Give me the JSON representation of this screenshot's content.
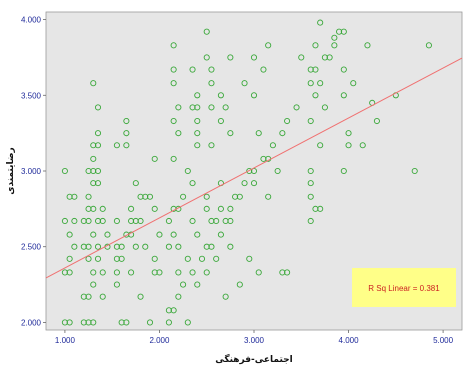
{
  "chart_data": {
    "type": "scatter",
    "xlabel": "اجتماعی-فرهنگی",
    "ylabel": "رضایتمندی",
    "xlim": [
      0.8,
      5.2
    ],
    "ylim": [
      1.95,
      4.05
    ],
    "x_ticks": [
      "1.000",
      "2.000",
      "3.000",
      "4.000",
      "5.000"
    ],
    "y_ticks": [
      "2.000",
      "2.500",
      "3.000",
      "3.500",
      "4.000"
    ],
    "grid": false,
    "plot_background": "#e6e6e6",
    "point_color": "#3aa83a",
    "fit_line_color": "#f07070",
    "fit_line": {
      "intercept": 2.03,
      "slope": 0.33,
      "x_range": [
        0.8,
        5.2
      ]
    },
    "r_squared_label": "R Sq Linear = 0.381",
    "r_squared_box_color": "#ffff88",
    "points": [
      [
        1.0,
        2.0
      ],
      [
        1.05,
        2.0
      ],
      [
        1.2,
        2.0
      ],
      [
        1.25,
        2.0
      ],
      [
        1.3,
        2.0
      ],
      [
        1.6,
        2.0
      ],
      [
        1.65,
        2.0
      ],
      [
        1.9,
        2.0
      ],
      [
        2.1,
        2.0
      ],
      [
        2.3,
        2.0
      ],
      [
        1.2,
        2.17
      ],
      [
        1.25,
        2.17
      ],
      [
        1.4,
        2.17
      ],
      [
        1.8,
        2.17
      ],
      [
        2.15,
        2.08
      ],
      [
        2.1,
        2.08
      ],
      [
        2.2,
        2.17
      ],
      [
        2.7,
        2.17
      ],
      [
        1.3,
        2.25
      ],
      [
        1.55,
        2.25
      ],
      [
        2.25,
        2.25
      ],
      [
        2.4,
        2.25
      ],
      [
        2.85,
        2.25
      ],
      [
        1.0,
        2.33
      ],
      [
        1.05,
        2.33
      ],
      [
        1.3,
        2.33
      ],
      [
        1.4,
        2.33
      ],
      [
        1.55,
        2.33
      ],
      [
        1.7,
        2.33
      ],
      [
        1.95,
        2.33
      ],
      [
        2.0,
        2.33
      ],
      [
        2.2,
        2.33
      ],
      [
        2.35,
        2.33
      ],
      [
        2.5,
        2.33
      ],
      [
        3.05,
        2.33
      ],
      [
        3.3,
        2.33
      ],
      [
        3.35,
        2.33
      ],
      [
        1.05,
        2.42
      ],
      [
        1.25,
        2.42
      ],
      [
        1.35,
        2.42
      ],
      [
        1.55,
        2.42
      ],
      [
        1.6,
        2.42
      ],
      [
        1.95,
        2.42
      ],
      [
        2.3,
        2.42
      ],
      [
        2.45,
        2.42
      ],
      [
        2.6,
        2.42
      ],
      [
        2.95,
        2.42
      ],
      [
        1.1,
        2.5
      ],
      [
        1.2,
        2.5
      ],
      [
        1.25,
        2.5
      ],
      [
        1.35,
        2.5
      ],
      [
        1.45,
        2.5
      ],
      [
        1.55,
        2.5
      ],
      [
        1.6,
        2.5
      ],
      [
        1.75,
        2.5
      ],
      [
        1.85,
        2.5
      ],
      [
        2.1,
        2.5
      ],
      [
        2.2,
        2.5
      ],
      [
        2.5,
        2.5
      ],
      [
        2.55,
        2.5
      ],
      [
        2.75,
        2.5
      ],
      [
        1.05,
        2.58
      ],
      [
        1.3,
        2.58
      ],
      [
        1.45,
        2.58
      ],
      [
        1.65,
        2.58
      ],
      [
        1.7,
        2.58
      ],
      [
        2.0,
        2.58
      ],
      [
        2.15,
        2.58
      ],
      [
        2.4,
        2.58
      ],
      [
        2.65,
        2.58
      ],
      [
        1.0,
        2.67
      ],
      [
        1.1,
        2.67
      ],
      [
        1.2,
        2.67
      ],
      [
        1.25,
        2.67
      ],
      [
        1.35,
        2.67
      ],
      [
        1.4,
        2.67
      ],
      [
        1.55,
        2.67
      ],
      [
        1.7,
        2.67
      ],
      [
        1.75,
        2.67
      ],
      [
        1.8,
        2.67
      ],
      [
        2.1,
        2.67
      ],
      [
        2.35,
        2.67
      ],
      [
        2.55,
        2.67
      ],
      [
        2.6,
        2.67
      ],
      [
        2.7,
        2.67
      ],
      [
        2.75,
        2.67
      ],
      [
        3.6,
        2.67
      ],
      [
        1.25,
        2.75
      ],
      [
        1.3,
        2.75
      ],
      [
        1.4,
        2.75
      ],
      [
        1.7,
        2.75
      ],
      [
        1.95,
        2.75
      ],
      [
        2.15,
        2.75
      ],
      [
        2.2,
        2.75
      ],
      [
        2.5,
        2.75
      ],
      [
        2.65,
        2.75
      ],
      [
        2.75,
        2.75
      ],
      [
        3.65,
        2.75
      ],
      [
        3.7,
        2.75
      ],
      [
        1.05,
        2.83
      ],
      [
        1.1,
        2.83
      ],
      [
        1.25,
        2.83
      ],
      [
        1.8,
        2.83
      ],
      [
        1.85,
        2.83
      ],
      [
        1.9,
        2.83
      ],
      [
        2.25,
        2.83
      ],
      [
        2.5,
        2.83
      ],
      [
        2.8,
        2.83
      ],
      [
        2.85,
        2.83
      ],
      [
        3.15,
        2.83
      ],
      [
        3.6,
        2.83
      ],
      [
        1.3,
        2.92
      ],
      [
        1.35,
        2.92
      ],
      [
        1.75,
        2.92
      ],
      [
        2.35,
        2.92
      ],
      [
        2.65,
        2.92
      ],
      [
        2.9,
        2.92
      ],
      [
        3.0,
        2.92
      ],
      [
        3.6,
        2.92
      ],
      [
        1.0,
        3.0
      ],
      [
        1.25,
        3.0
      ],
      [
        1.3,
        3.0
      ],
      [
        1.35,
        3.0
      ],
      [
        2.3,
        3.0
      ],
      [
        2.95,
        3.0
      ],
      [
        3.0,
        3.0
      ],
      [
        3.25,
        3.0
      ],
      [
        3.6,
        3.0
      ],
      [
        3.95,
        3.0
      ],
      [
        4.7,
        3.0
      ],
      [
        1.3,
        3.08
      ],
      [
        1.95,
        3.08
      ],
      [
        2.15,
        3.08
      ],
      [
        3.1,
        3.08
      ],
      [
        3.15,
        3.08
      ],
      [
        1.3,
        3.17
      ],
      [
        1.35,
        3.17
      ],
      [
        1.55,
        3.17
      ],
      [
        1.65,
        3.17
      ],
      [
        2.4,
        3.17
      ],
      [
        2.55,
        3.17
      ],
      [
        3.2,
        3.17
      ],
      [
        3.7,
        3.17
      ],
      [
        4.0,
        3.17
      ],
      [
        4.15,
        3.17
      ],
      [
        1.35,
        3.25
      ],
      [
        1.65,
        3.25
      ],
      [
        2.2,
        3.25
      ],
      [
        2.4,
        3.25
      ],
      [
        2.75,
        3.25
      ],
      [
        3.05,
        3.25
      ],
      [
        3.3,
        3.25
      ],
      [
        4.0,
        3.25
      ],
      [
        1.65,
        3.33
      ],
      [
        2.15,
        3.33
      ],
      [
        2.4,
        3.33
      ],
      [
        2.65,
        3.33
      ],
      [
        3.35,
        3.33
      ],
      [
        3.6,
        3.33
      ],
      [
        4.3,
        3.33
      ],
      [
        2.2,
        3.42
      ],
      [
        2.35,
        3.42
      ],
      [
        2.4,
        3.42
      ],
      [
        2.55,
        3.42
      ],
      [
        2.7,
        3.42
      ],
      [
        3.45,
        3.42
      ],
      [
        3.75,
        3.42
      ],
      [
        4.25,
        3.45
      ],
      [
        1.35,
        3.42
      ],
      [
        2.4,
        3.5
      ],
      [
        2.65,
        3.5
      ],
      [
        3.0,
        3.5
      ],
      [
        3.65,
        3.5
      ],
      [
        3.95,
        3.5
      ],
      [
        4.5,
        3.5
      ],
      [
        1.3,
        3.58
      ],
      [
        2.15,
        3.58
      ],
      [
        2.55,
        3.58
      ],
      [
        2.9,
        3.58
      ],
      [
        3.6,
        3.58
      ],
      [
        3.7,
        3.58
      ],
      [
        4.05,
        3.58
      ],
      [
        2.15,
        3.67
      ],
      [
        2.35,
        3.67
      ],
      [
        2.55,
        3.67
      ],
      [
        3.1,
        3.67
      ],
      [
        3.6,
        3.67
      ],
      [
        3.65,
        3.67
      ],
      [
        3.95,
        3.67
      ],
      [
        2.5,
        3.75
      ],
      [
        2.75,
        3.75
      ],
      [
        3.0,
        3.75
      ],
      [
        3.5,
        3.75
      ],
      [
        3.75,
        3.75
      ],
      [
        3.8,
        3.75
      ],
      [
        2.15,
        3.83
      ],
      [
        3.15,
        3.83
      ],
      [
        3.65,
        3.83
      ],
      [
        3.85,
        3.83
      ],
      [
        4.2,
        3.83
      ],
      [
        4.85,
        3.83
      ],
      [
        2.5,
        3.92
      ],
      [
        3.9,
        3.92
      ],
      [
        3.95,
        3.92
      ],
      [
        3.85,
        3.88
      ],
      [
        3.7,
        3.98
      ]
    ]
  }
}
